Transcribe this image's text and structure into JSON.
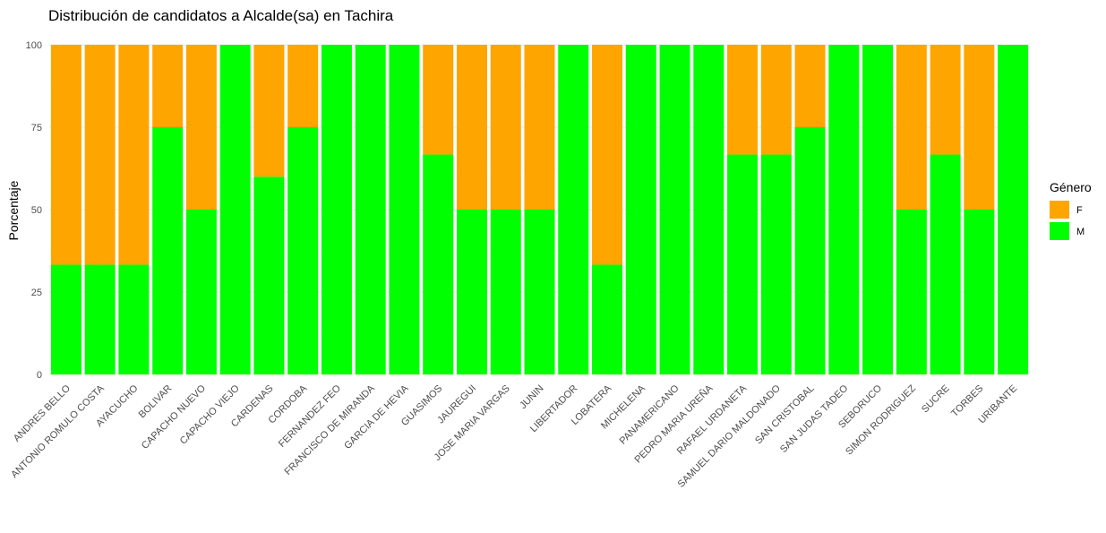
{
  "chart_data": {
    "type": "bar",
    "stacked": true,
    "title": "Distribución de candidatos a Alcalde(sa) en Tachira",
    "xlabel": "",
    "ylabel": "Porcentaje",
    "ylim": [
      0,
      100
    ],
    "yticks": [
      0,
      25,
      50,
      75,
      100
    ],
    "grid": true,
    "legend": {
      "title": "Género",
      "position": "right"
    },
    "categories": [
      "ANDRES BELLO",
      "ANTONIO ROMULO COSTA",
      "AYACUCHO",
      "BOLIVAR",
      "CAPACHO NUEVO",
      "CAPACHO VIEJO",
      "CARDENAS",
      "CORDOBA",
      "FERNANDEZ FEO",
      "FRANCISCO DE MIRANDA",
      "GARCIA DE HEVIA",
      "GUASIMOS",
      "JAUREGUI",
      "JOSE MARIA VARGAS",
      "JUNIN",
      "LIBERTADOR",
      "LOBATERA",
      "MICHELENA",
      "PANAMERICANO",
      "PEDRO MARIA UREÑA",
      "RAFAEL URDANETA",
      "SAMUEL DARIO MALDONADO",
      "SAN CRISTOBAL",
      "SAN JUDAS TADEO",
      "SEBORUCO",
      "SIMON RODRIGUEZ",
      "SUCRE",
      "TORBES",
      "URIBANTE"
    ],
    "series": [
      {
        "name": "F",
        "color": "#FFA500",
        "values": [
          66.7,
          66.7,
          66.7,
          25,
          50,
          0,
          40,
          25,
          0,
          0,
          0,
          33.3,
          50,
          50,
          50,
          0,
          66.7,
          0,
          0,
          0,
          33.3,
          33.3,
          25,
          0,
          0,
          50,
          33.3,
          50,
          0
        ]
      },
      {
        "name": "M",
        "color": "#00FF00",
        "values": [
          33.3,
          33.3,
          33.3,
          75,
          50,
          100,
          60,
          75,
          100,
          100,
          100,
          66.7,
          50,
          50,
          50,
          100,
          33.3,
          100,
          100,
          100,
          66.7,
          66.7,
          75,
          100,
          100,
          50,
          66.7,
          50,
          100
        ]
      }
    ]
  }
}
